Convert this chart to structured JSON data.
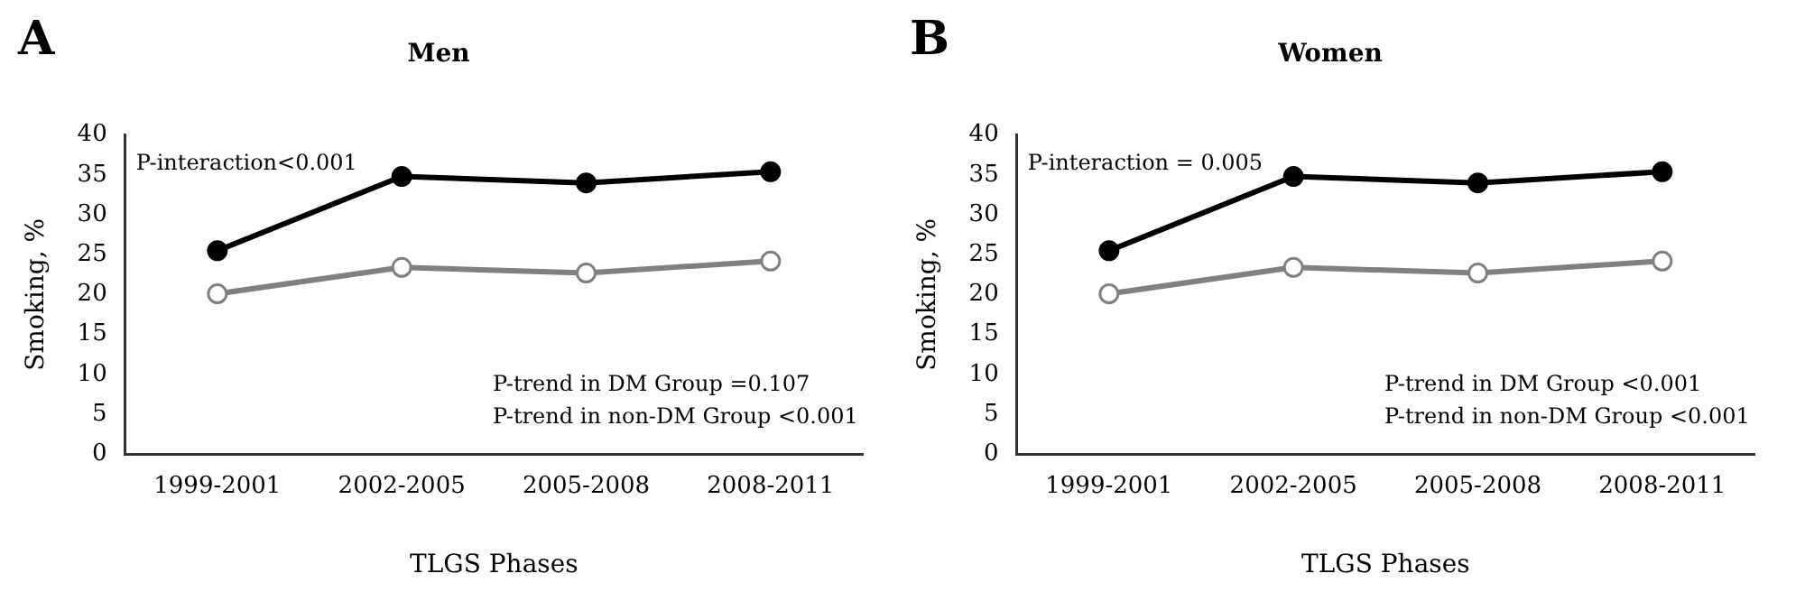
{
  "chart_data": [
    {
      "type": "line",
      "title": "Men",
      "xlabel": "TLGS Phases",
      "ylabel": "Smoking, %",
      "categories": [
        "1999-2001",
        "2002-2005",
        "2005-2008",
        "2008-2011"
      ],
      "series": [
        {
          "color": "#000000",
          "values": [
            25.5,
            34.8,
            34.0,
            35.4
          ]
        },
        {
          "color": "#808080",
          "values": [
            20.1,
            23.4,
            22.7,
            24.2
          ]
        }
      ],
      "ylim": [
        0,
        40
      ],
      "yticks": [
        0,
        5,
        10,
        15,
        20,
        25,
        30,
        35,
        40
      ],
      "grid": false,
      "legend": false,
      "marker": "circle",
      "line_style": "solid",
      "annotations": [
        "A",
        "P-interaction<0.001",
        "P-trend in DM Group =0.107",
        "P-trend in non-DM Group <0.001"
      ]
    },
    {
      "type": "line",
      "title": "Women",
      "xlabel": "TLGS Phases",
      "ylabel": "Smoking, %",
      "categories": [
        "1999-2001",
        "2002-2005",
        "2005-2008",
        "2008-2011"
      ],
      "series": [
        {
          "color": "#000000",
          "values": [
            25.5,
            34.8,
            34.0,
            35.4
          ]
        },
        {
          "color": "#808080",
          "values": [
            20.1,
            23.4,
            22.7,
            24.2
          ]
        }
      ],
      "ylim": [
        0,
        40
      ],
      "yticks": [
        0,
        5,
        10,
        15,
        20,
        25,
        30,
        35,
        40
      ],
      "grid": false,
      "legend": false,
      "marker": "circle",
      "line_style": "solid",
      "annotations": [
        "B",
        "P-interaction = 0.005",
        "P-trend in DM Group <0.001",
        "P-trend in non-DM Group <0.001"
      ]
    }
  ]
}
